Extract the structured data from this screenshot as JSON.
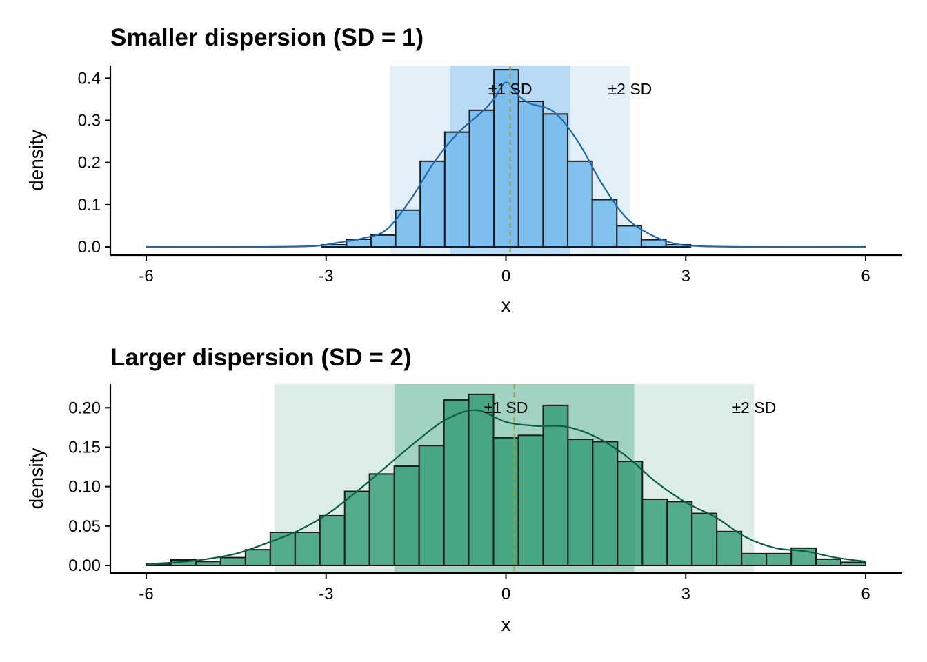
{
  "chart_data": [
    {
      "type": "bar",
      "title": "Smaller dispersion (SD = 1)",
      "xlabel": "x",
      "ylabel": "density",
      "xlim": [
        -6,
        6
      ],
      "ylim": [
        0,
        0.43
      ],
      "xticks": [
        -6,
        -3,
        0,
        3,
        6
      ],
      "xtick_labels": [
        "-6",
        "-3",
        "0",
        "3",
        "6"
      ],
      "yticks": [
        0.0,
        0.1,
        0.2,
        0.3,
        0.4
      ],
      "ytick_labels": [
        "0.0",
        "0.1",
        "0.2",
        "0.3",
        "0.4"
      ],
      "mean": 0.07,
      "band_1sd": [
        -0.93,
        1.07
      ],
      "band_2sd": [
        -1.93,
        2.07
      ],
      "band_labels": [
        "±1 SD",
        "±2 SD"
      ],
      "label_1sd_x": 0.07,
      "label_2sd_x": 2.07,
      "bin_edges": [
        -3.07,
        -2.66,
        -2.25,
        -1.84,
        -1.43,
        -1.02,
        -0.61,
        -0.2,
        0.21,
        0.62,
        1.03,
        1.44,
        1.85,
        2.26,
        2.67,
        3.08
      ],
      "values": [
        0.005,
        0.018,
        0.028,
        0.087,
        0.203,
        0.272,
        0.324,
        0.42,
        0.345,
        0.315,
        0.203,
        0.112,
        0.05,
        0.017,
        0.005
      ],
      "density_curve": {
        "x": [
          -6,
          -4,
          -3.2,
          -2.8,
          -2.4,
          -2.0,
          -1.6,
          -1.2,
          -0.8,
          -0.4,
          -0.2,
          0.0,
          0.2,
          0.4,
          0.8,
          1.2,
          1.6,
          2.0,
          2.4,
          2.8,
          3.2,
          4,
          6
        ],
        "y": [
          0,
          0,
          0.002,
          0.01,
          0.02,
          0.04,
          0.11,
          0.2,
          0.27,
          0.32,
          0.35,
          0.39,
          0.36,
          0.34,
          0.32,
          0.25,
          0.15,
          0.07,
          0.03,
          0.008,
          0.002,
          0,
          0
        ]
      },
      "colors": {
        "bar_fill": "#72b8ec",
        "bar_stroke": "#1a1a1a",
        "curve": "#2166ac",
        "band_1sd": "#b9daf5",
        "band_2sd": "#e3eff9",
        "mean_line": "#9aa04a"
      }
    },
    {
      "type": "bar",
      "title": "Larger dispersion (SD = 2)",
      "xlabel": "x",
      "ylabel": "density",
      "xlim": [
        -6,
        6
      ],
      "ylim": [
        0,
        0.23
      ],
      "xticks": [
        -6,
        -3,
        0,
        3,
        6
      ],
      "xtick_labels": [
        "-6",
        "-3",
        "0",
        "3",
        "6"
      ],
      "yticks": [
        0.0,
        0.05,
        0.1,
        0.15,
        0.2
      ],
      "ytick_labels": [
        "0.00",
        "0.05",
        "0.10",
        "0.15",
        "0.20"
      ],
      "mean": 0.14,
      "band_1sd": [
        -1.86,
        2.14
      ],
      "band_2sd": [
        -3.86,
        4.14
      ],
      "band_labels": [
        "±1 SD",
        "±2 SD"
      ],
      "label_1sd_x": 0.0,
      "label_2sd_x": 4.14,
      "bin_edges": [
        -6.0,
        -5.586,
        -5.172,
        -4.759,
        -4.345,
        -3.931,
        -3.517,
        -3.103,
        -2.69,
        -2.276,
        -1.862,
        -1.448,
        -1.034,
        -0.621,
        -0.207,
        0.207,
        0.621,
        1.034,
        1.448,
        1.862,
        2.276,
        2.69,
        3.103,
        3.517,
        3.931,
        4.345,
        4.759,
        5.172,
        5.586,
        6.0
      ],
      "values": [
        0.002,
        0.007,
        0.005,
        0.01,
        0.02,
        0.042,
        0.042,
        0.063,
        0.094,
        0.116,
        0.126,
        0.152,
        0.21,
        0.217,
        0.162,
        0.165,
        0.203,
        0.16,
        0.157,
        0.132,
        0.084,
        0.081,
        0.066,
        0.043,
        0.015,
        0.015,
        0.022,
        0.008,
        0.004
      ],
      "density_curve": {
        "x": [
          -6,
          -5.5,
          -5,
          -4.5,
          -4,
          -3.5,
          -3,
          -2.5,
          -2,
          -1.5,
          -1,
          -0.5,
          0,
          0.5,
          1,
          1.5,
          2,
          2.5,
          3,
          3.5,
          4,
          4.5,
          5,
          5.5,
          6
        ],
        "y": [
          0.002,
          0.004,
          0.008,
          0.015,
          0.028,
          0.043,
          0.064,
          0.093,
          0.125,
          0.157,
          0.185,
          0.197,
          0.182,
          0.177,
          0.176,
          0.163,
          0.139,
          0.106,
          0.08,
          0.061,
          0.036,
          0.022,
          0.018,
          0.01,
          0.005
        ]
      },
      "colors": {
        "bar_fill": "#3a9f78",
        "bar_stroke": "#1a1a1a",
        "curve": "#0b5e3f",
        "band_1sd": "#a2d2c1",
        "band_2sd": "#dcede7",
        "mean_line": "#9aa04a"
      }
    }
  ]
}
